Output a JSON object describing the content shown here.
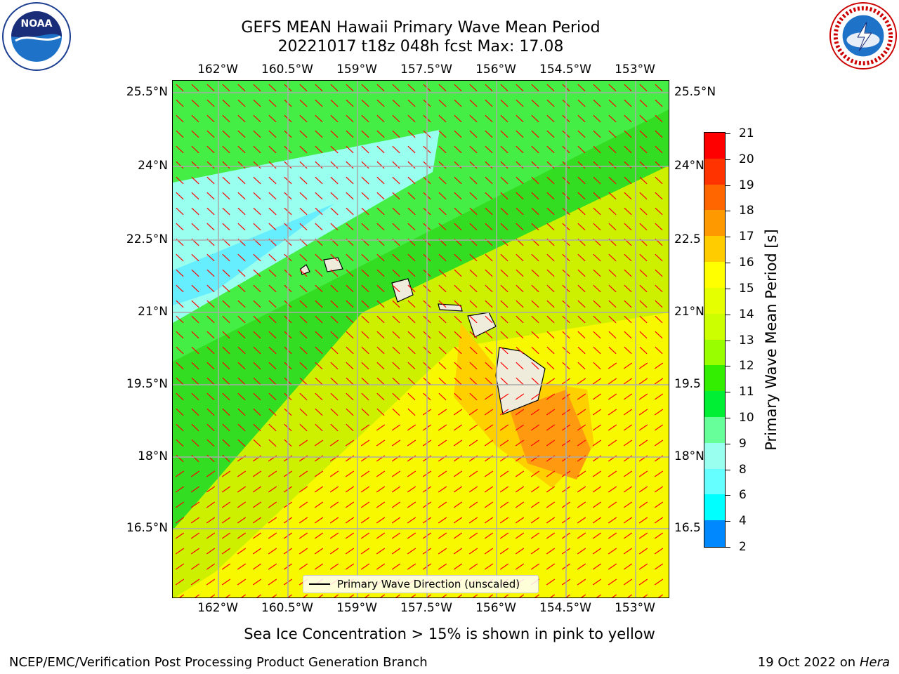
{
  "title_line1": "GEFS MEAN Hawaii Primary Wave Mean Period",
  "title_line2": "20221017 t18z 048h fcst   Max: 17.08",
  "logos": {
    "left": "NOAA",
    "right": "NATIONAL WEATHER SERVICE"
  },
  "lon_labels": [
    "162°W",
    "160.5°W",
    "159°W",
    "157.5°W",
    "156°W",
    "154.5°W",
    "153°W"
  ],
  "lat_labels_left": [
    "25.5°N",
    "24°N",
    "22.5°N",
    "21°N",
    "19.5°N",
    "18°N",
    "16.5°N"
  ],
  "lat_labels_right": [
    "25.5°N",
    "24°N",
    "22.5",
    "21°N",
    "19.5",
    "18°N",
    "16.5"
  ],
  "colorbar": {
    "label": "Primary Wave Mean Period [s]",
    "ticks": [
      "21",
      "20",
      "19",
      "18",
      "17",
      "16",
      "15",
      "14",
      "13",
      "12",
      "11",
      "10",
      "9",
      "8",
      "6",
      "4",
      "2"
    ],
    "colors": [
      "#ff0000",
      "#ff3300",
      "#ff6600",
      "#ff9900",
      "#ffcc00",
      "#ffff00",
      "#e6ff00",
      "#ccff00",
      "#99ff00",
      "#33ee00",
      "#00ee33",
      "#66ff99",
      "#99ffee",
      "#66ffff",
      "#00ffff",
      "#0088ff",
      "#0000ff"
    ]
  },
  "legend_label": "Primary Wave Direction (unscaled)",
  "ice_note": "Sea Ice Concentration > 15% is shown in pink to yellow",
  "footer_left": "NCEP/EMC/Verification Post Processing Product Generation Branch",
  "footer_date": "19 Oct 2022 on ",
  "footer_host": "Hera",
  "map_colors": {
    "green_light": "#44ee44",
    "green": "#33dd22",
    "cyan_light": "#99ffee",
    "cyan": "#66eeff",
    "yellow_green": "#ccf000",
    "yellow": "#f8f800",
    "gold": "#ffd000",
    "orange": "#ff9a10",
    "land": "#f0ecdc",
    "arrow": "#ff0000",
    "grid": "#aaaaaa"
  }
}
